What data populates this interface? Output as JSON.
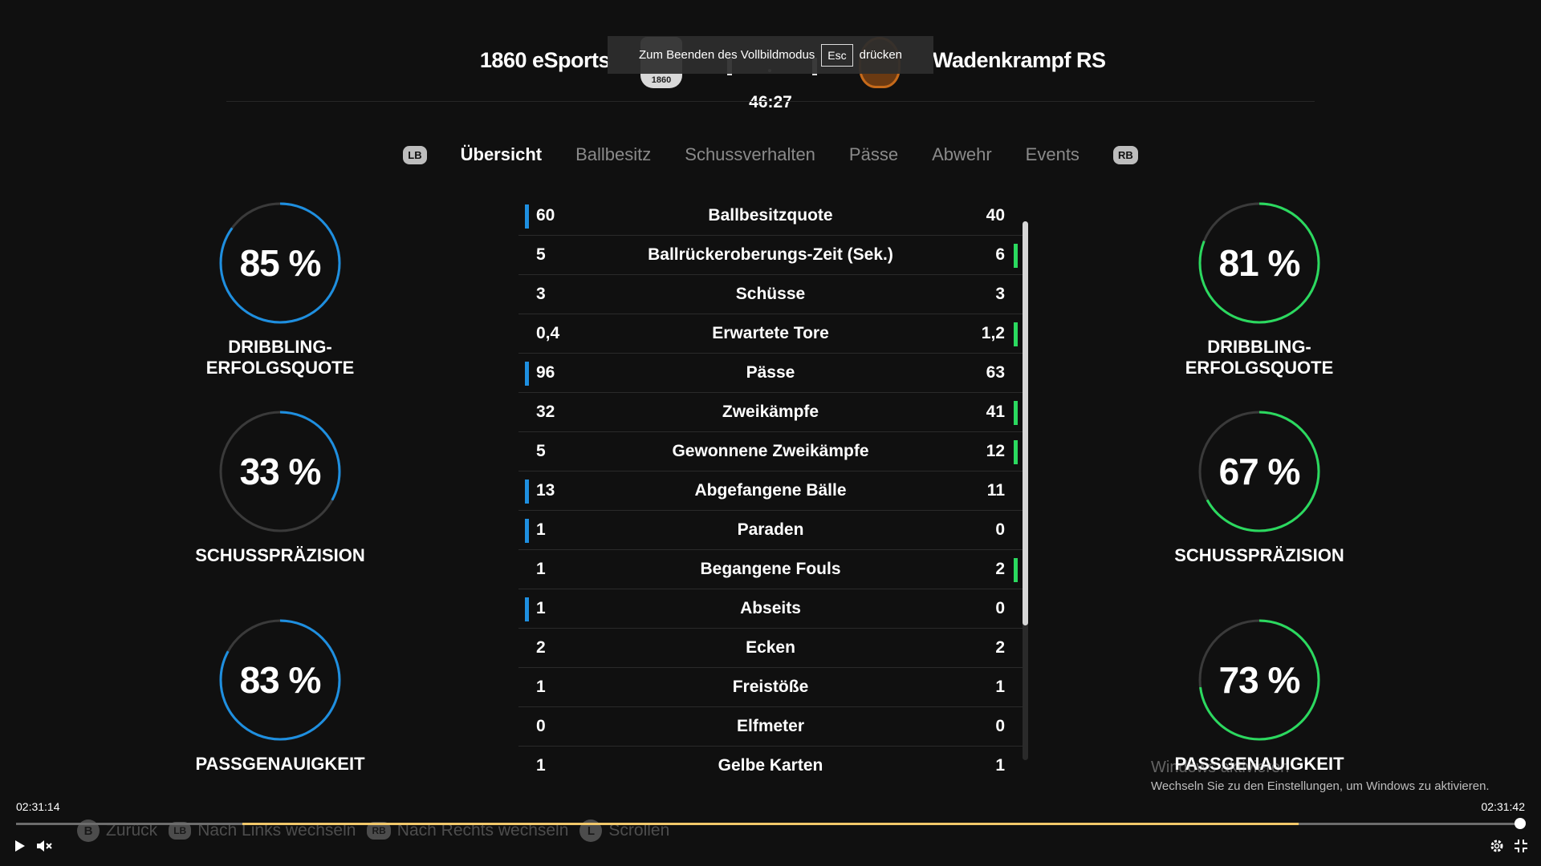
{
  "match": {
    "home_team": "1860 eSports",
    "away_team": "Wadenkrampf RS",
    "home_crest_text": "1860",
    "clock": "46:27"
  },
  "fullscreen_toast": {
    "before": "Zum Beenden des Vollbildmodus",
    "key": "Esc",
    "after": "drücken"
  },
  "tabs": {
    "left_bumper": "LB",
    "right_bumper": "RB",
    "items": [
      "Übersicht",
      "Ballbesitz",
      "Schussverhalten",
      "Pässe",
      "Abwehr",
      "Events"
    ],
    "active": "Übersicht"
  },
  "gauges": {
    "home": [
      {
        "value": "85 %",
        "fraction": 0.85,
        "label": "DRIBBLING-ERFOLGSQUOTE",
        "color": "#1e8fe0"
      },
      {
        "value": "33 %",
        "fraction": 0.33,
        "label": "SCHUSSPRÄZISION",
        "color": "#1e8fe0"
      },
      {
        "value": "83 %",
        "fraction": 0.83,
        "label": "PASSGENAUIGKEIT",
        "color": "#1e8fe0"
      }
    ],
    "away": [
      {
        "value": "81 %",
        "fraction": 0.81,
        "label": "DRIBBLING-ERFOLGSQUOTE",
        "color": "#2bd95f"
      },
      {
        "value": "67 %",
        "fraction": 0.67,
        "label": "SCHUSSPRÄZISION",
        "color": "#2bd95f"
      },
      {
        "value": "73 %",
        "fraction": 0.73,
        "label": "PASSGENAUIGKEIT",
        "color": "#2bd95f"
      }
    ]
  },
  "stats": [
    {
      "name": "Ballbesitzquote",
      "home": "60",
      "away": "40",
      "lead": "home"
    },
    {
      "name": "Ballrückeroberungs-Zeit (Sek.)",
      "home": "5",
      "away": "6",
      "lead": "away"
    },
    {
      "name": "Schüsse",
      "home": "3",
      "away": "3",
      "lead": "none"
    },
    {
      "name": "Erwartete Tore",
      "home": "0,4",
      "away": "1,2",
      "lead": "away"
    },
    {
      "name": "Pässe",
      "home": "96",
      "away": "63",
      "lead": "home"
    },
    {
      "name": "Zweikämpfe",
      "home": "32",
      "away": "41",
      "lead": "away"
    },
    {
      "name": "Gewonnene Zweikämpfe",
      "home": "5",
      "away": "12",
      "lead": "away"
    },
    {
      "name": "Abgefangene Bälle",
      "home": "13",
      "away": "11",
      "lead": "home"
    },
    {
      "name": "Paraden",
      "home": "1",
      "away": "0",
      "lead": "home"
    },
    {
      "name": "Begangene Fouls",
      "home": "1",
      "away": "2",
      "lead": "away"
    },
    {
      "name": "Abseits",
      "home": "1",
      "away": "0",
      "lead": "home"
    },
    {
      "name": "Ecken",
      "home": "2",
      "away": "2",
      "lead": "none"
    },
    {
      "name": "Freistöße",
      "home": "1",
      "away": "1",
      "lead": "none"
    },
    {
      "name": "Elfmeter",
      "home": "0",
      "away": "0",
      "lead": "none"
    },
    {
      "name": "Gelbe Karten",
      "home": "1",
      "away": "1",
      "lead": "none"
    }
  ],
  "watermark": {
    "title": "Windows aktivieren",
    "subtitle": "Wechseln Sie zu den Einstellungen, um Windows zu aktivieren."
  },
  "hints": [
    {
      "button": "B",
      "label": "Zurück"
    },
    {
      "button": "LB",
      "label": "Nach Links wechseln"
    },
    {
      "button": "RB",
      "label": "Nach Rechts wechseln"
    },
    {
      "button": "L",
      "label": "Scrollen"
    }
  ],
  "player": {
    "current_time": "02:31:14",
    "duration": "02:31:42",
    "progress": 1.0
  },
  "colors": {
    "home_accent": "#1e8fe0",
    "away_accent": "#2bd95f",
    "background": "#101010"
  }
}
